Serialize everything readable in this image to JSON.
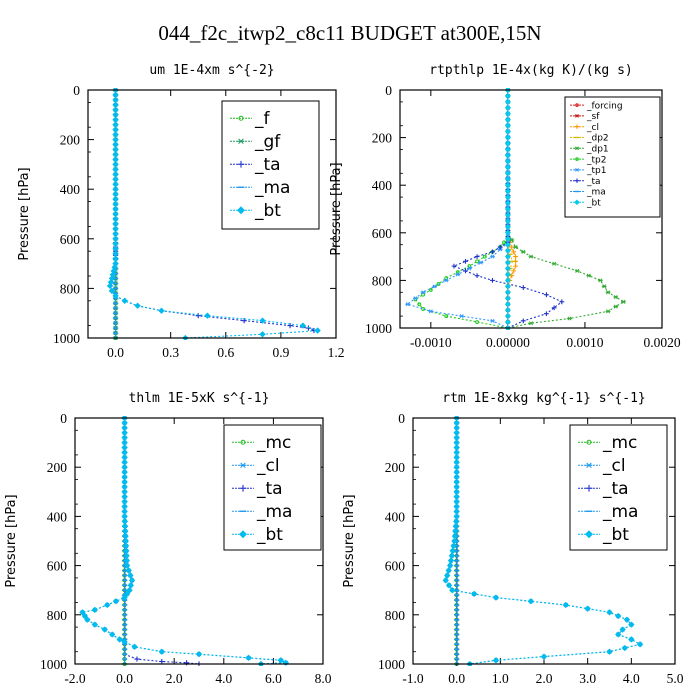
{
  "figure": {
    "title": "044_f2c_itwp2_c8c11  BUDGET at300E,15N"
  },
  "chart_data": [
    {
      "type": "line",
      "title": "um  1E-4xm s^{-2}",
      "ylabel": "Pressure [hPa]",
      "xlabel": "",
      "xlim": [
        -0.15,
        1.2
      ],
      "ylim": [
        1000,
        0
      ],
      "xticks": [
        0.0,
        0.3,
        0.6,
        0.9,
        1.2
      ],
      "xtick_labels": [
        "0.0",
        "0.3",
        "0.6",
        "0.9",
        "1.2"
      ],
      "yticks": [
        0,
        200,
        400,
        600,
        800,
        1000
      ],
      "ytick_labels": [
        "0",
        "200",
        "400",
        "600",
        "800",
        "1000"
      ],
      "legend_position": "top-right",
      "legend": [
        "_f",
        "_gf",
        "_ta",
        "_ma",
        "_bt"
      ],
      "series": [
        {
          "name": "_f",
          "color": "#22bb22",
          "marker": "circle",
          "x": [
            0,
            0
          ],
          "y": [
            0,
            1000
          ]
        },
        {
          "name": "_gf",
          "color": "#229966",
          "marker": "star",
          "x": [
            0,
            0
          ],
          "y": [
            0,
            1000
          ]
        },
        {
          "name": "_ta",
          "color": "#2233cc",
          "marker": "plus",
          "x": [
            0.0,
            0.0,
            0.0,
            0.0,
            0.0,
            0.0,
            0.0,
            0.0,
            0.0,
            -0.01,
            -0.02,
            -0.03,
            -0.02,
            0.0,
            0.05,
            0.12,
            0.25,
            0.45,
            0.7,
            0.95,
            1.05,
            1.08
          ],
          "y": [
            0,
            100,
            200,
            300,
            400,
            500,
            600,
            650,
            700,
            730,
            760,
            790,
            810,
            830,
            850,
            870,
            890,
            910,
            930,
            950,
            960,
            970
          ]
        },
        {
          "name": "_ma",
          "color": "#2299ee",
          "marker": "dash",
          "x": [
            0,
            0
          ],
          "y": [
            0,
            1000
          ]
        },
        {
          "name": "_bt",
          "color": "#00bbee",
          "marker": "diamond",
          "x": [
            0.0,
            0.0,
            0.0,
            0.0,
            0.0,
            0.0,
            0.0,
            0.0,
            -0.01,
            -0.02,
            -0.03,
            -0.02,
            0.0,
            0.05,
            0.12,
            0.25,
            0.5,
            0.8,
            1.02,
            1.1,
            0.8,
            0.38
          ],
          "y": [
            0,
            100,
            200,
            300,
            400,
            500,
            600,
            700,
            730,
            760,
            790,
            810,
            830,
            850,
            870,
            890,
            910,
            930,
            950,
            970,
            985,
            1000
          ]
        }
      ]
    },
    {
      "type": "line",
      "title": "rtpthlp  1E-4x(kg K)/(kg s)",
      "ylabel": "Pressure [hPa]",
      "xlabel": "",
      "xlim": [
        -0.0014,
        0.002
      ],
      "ylim": [
        1000,
        0
      ],
      "xticks": [
        -0.001,
        0.0,
        0.001,
        0.002
      ],
      "xtick_labels": [
        "-0.0010",
        "0.00000",
        "0.0010",
        "0.0020"
      ],
      "yticks": [
        0,
        200,
        400,
        600,
        800,
        1000
      ],
      "ytick_labels": [
        "0",
        "200",
        "400",
        "600",
        "800",
        "1000"
      ],
      "legend_position": "top-right",
      "legend": [
        "_forcing",
        "_sf",
        "_cl",
        "_dp2",
        "_dp1",
        "_tp2",
        "_tp1",
        "_ta",
        "_ma",
        "_bt"
      ],
      "series": [
        {
          "name": "_forcing",
          "color": "#dd2222",
          "marker": "circle",
          "x": [
            0,
            0
          ],
          "y": [
            0,
            1000
          ]
        },
        {
          "name": "_sf",
          "color": "#cc1111",
          "marker": "star",
          "x": [
            0,
            0
          ],
          "y": [
            0,
            1000
          ]
        },
        {
          "name": "_cl",
          "color": "#ff9900",
          "marker": "plus",
          "x": [
            0,
            0,
            5e-05,
            0.0001,
            0.0001,
            5e-05,
            0,
            0,
            0
          ],
          "y": [
            0,
            620,
            660,
            700,
            740,
            780,
            820,
            900,
            1000
          ]
        },
        {
          "name": "_dp2",
          "color": "#ddbb00",
          "marker": "dash",
          "x": [
            0,
            0,
            3e-05,
            6e-05,
            3e-05,
            0,
            0
          ],
          "y": [
            0,
            650,
            690,
            720,
            750,
            800,
            1000
          ]
        },
        {
          "name": "_dp1",
          "color": "#33aa33",
          "marker": "star",
          "x": [
            0,
            0,
            0.0001,
            0.0003,
            0.0006,
            0.0009,
            0.0012,
            0.0013,
            0.0015,
            0.0013,
            0.0008,
            0.0003,
            0
          ],
          "y": [
            0,
            600,
            660,
            700,
            730,
            760,
            800,
            850,
            890,
            930,
            960,
            980,
            1000
          ]
        },
        {
          "name": "_tp2",
          "color": "#22cc22",
          "marker": "circle",
          "x": [
            0,
            0,
            -0.0001,
            -0.0003,
            -0.0005,
            -0.0008,
            -0.001,
            -0.0012,
            -0.0011,
            -0.0008,
            -0.0004,
            0
          ],
          "y": [
            0,
            620,
            660,
            700,
            740,
            790,
            840,
            880,
            920,
            950,
            975,
            1000
          ]
        },
        {
          "name": "_tp1",
          "color": "#3399ff",
          "marker": "star",
          "x": [
            0,
            0,
            -0.0002,
            -0.0005,
            -0.0008,
            -0.0011,
            -0.0013,
            -0.001,
            -0.0006,
            -0.0002,
            0
          ],
          "y": [
            0,
            640,
            700,
            750,
            800,
            850,
            900,
            930,
            950,
            970,
            1000
          ]
        },
        {
          "name": "_ta",
          "color": "#2233cc",
          "marker": "plus",
          "x": [
            0,
            0,
            -0.0002,
            -0.0004,
            -0.0007,
            -0.0004,
            -0.0002,
            0.0002,
            0.0005,
            0.0007,
            0.0005,
            0.0002,
            0
          ],
          "y": [
            0,
            640,
            680,
            700,
            740,
            780,
            800,
            830,
            860,
            890,
            940,
            970,
            1000
          ]
        },
        {
          "name": "_ma",
          "color": "#2299ee",
          "marker": "dash",
          "x": [
            0,
            0
          ],
          "y": [
            0,
            1000
          ]
        },
        {
          "name": "_bt",
          "color": "#00ccee",
          "marker": "diamond",
          "x": [
            0,
            0
          ],
          "y": [
            0,
            1000
          ]
        }
      ]
    },
    {
      "type": "line",
      "title": "thlm  1E-5xK s^{-1}",
      "ylabel": "Pressure [hPa]",
      "xlabel": "",
      "xlim": [
        -2.0,
        8.0
      ],
      "ylim": [
        1000,
        0
      ],
      "xticks": [
        -2.0,
        0.0,
        2.0,
        4.0,
        6.0,
        8.0
      ],
      "xtick_labels": [
        "-2.0",
        "0.0",
        "2.0",
        "4.0",
        "6.0",
        "8.0"
      ],
      "yticks": [
        0,
        200,
        400,
        600,
        800,
        1000
      ],
      "ytick_labels": [
        "0",
        "200",
        "400",
        "600",
        "800",
        "1000"
      ],
      "legend_position": "top-right",
      "legend": [
        "_mc",
        "_cl",
        "_ta",
        "_ma",
        "_bt"
      ],
      "series": [
        {
          "name": "_mc",
          "color": "#22bb22",
          "marker": "circle",
          "x": [
            0,
            0
          ],
          "y": [
            0,
            1000
          ]
        },
        {
          "name": "_cl",
          "color": "#2299ee",
          "marker": "star",
          "x": [
            0.0,
            0.0,
            0.0,
            0.0,
            0.0,
            0.05,
            0.1,
            0.3,
            0.2,
            0.0,
            -0.7,
            -1.2,
            -1.7,
            -1.5,
            -1.2,
            -0.8,
            -0.5,
            -0.2,
            0.0,
            0.4,
            1.5,
            3.0,
            5.0,
            6.3,
            6.5,
            5.5
          ],
          "y": [
            0,
            100,
            200,
            300,
            400,
            500,
            600,
            660,
            700,
            730,
            760,
            780,
            790,
            820,
            840,
            860,
            880,
            900,
            910,
            930,
            950,
            960,
            975,
            985,
            995,
            1000
          ]
        },
        {
          "name": "_ta",
          "color": "#2233cc",
          "marker": "plus",
          "x": [
            0,
            0,
            0.5,
            1.5,
            2.5,
            3.0
          ],
          "y": [
            0,
            960,
            980,
            990,
            995,
            1000
          ]
        },
        {
          "name": "_ma",
          "color": "#2299ee",
          "marker": "dash",
          "x": [
            0,
            0
          ],
          "y": [
            0,
            1000
          ]
        },
        {
          "name": "_bt",
          "color": "#00bbee",
          "marker": "diamond",
          "x": [
            0.0,
            0.0,
            0.0,
            0.0,
            0.0,
            0.05,
            0.1,
            0.3,
            0.2,
            0.0,
            -0.7,
            -1.2,
            -1.7,
            -1.5,
            -1.2,
            -0.8,
            -0.5,
            -0.2,
            0.0,
            0.4,
            1.5,
            3.0,
            5.0,
            6.3,
            6.5,
            5.5
          ],
          "y": [
            0,
            100,
            200,
            300,
            400,
            500,
            600,
            660,
            700,
            730,
            760,
            780,
            790,
            820,
            840,
            860,
            880,
            900,
            910,
            930,
            950,
            960,
            975,
            985,
            995,
            1000
          ]
        }
      ]
    },
    {
      "type": "line",
      "title": "rtm  1E-8xkg kg^{-1} s^{-1}",
      "ylabel": "Pressure [hPa]",
      "xlabel": "",
      "xlim": [
        -1.0,
        5.0
      ],
      "ylim": [
        1000,
        0
      ],
      "xticks": [
        -1.0,
        0.0,
        1.0,
        2.0,
        3.0,
        4.0,
        5.0
      ],
      "xtick_labels": [
        "-1.0",
        "0.0",
        "1.0",
        "2.0",
        "3.0",
        "4.0",
        "5.0"
      ],
      "yticks": [
        0,
        200,
        400,
        600,
        800,
        1000
      ],
      "ytick_labels": [
        "0",
        "200",
        "400",
        "600",
        "800",
        "1000"
      ],
      "legend_position": "top-right",
      "legend": [
        "_mc",
        "_cl",
        "_ta",
        "_ma",
        "_bt"
      ],
      "series": [
        {
          "name": "_mc",
          "color": "#22bb22",
          "marker": "circle",
          "x": [
            0,
            0
          ],
          "y": [
            0,
            1000
          ]
        },
        {
          "name": "_cl",
          "color": "#2299ee",
          "marker": "star",
          "x": [
            0.0,
            0.0,
            0.0,
            0.0,
            0.0,
            -0.05,
            -0.15,
            -0.25,
            -0.1,
            0.9,
            2.5,
            3.5,
            3.9,
            4.0,
            3.8,
            3.7,
            4.0,
            4.2,
            3.5,
            2.0,
            0.9,
            0.3
          ],
          "y": [
            0,
            100,
            200,
            300,
            400,
            500,
            600,
            660,
            700,
            730,
            760,
            790,
            820,
            840,
            860,
            880,
            900,
            920,
            950,
            970,
            985,
            1000
          ]
        },
        {
          "name": "_ta",
          "color": "#2233cc",
          "marker": "plus",
          "x": [
            0,
            0
          ],
          "y": [
            0,
            1000
          ]
        },
        {
          "name": "_ma",
          "color": "#2299ee",
          "marker": "dash",
          "x": [
            0,
            0
          ],
          "y": [
            0,
            1000
          ]
        },
        {
          "name": "_bt",
          "color": "#00bbee",
          "marker": "diamond",
          "x": [
            0.0,
            0.0,
            0.0,
            0.0,
            0.0,
            -0.05,
            -0.15,
            -0.25,
            -0.1,
            0.9,
            2.5,
            3.5,
            3.9,
            4.0,
            3.8,
            3.7,
            4.0,
            4.2,
            3.5,
            2.0,
            0.9,
            0.3
          ],
          "y": [
            0,
            100,
            200,
            300,
            400,
            500,
            600,
            660,
            700,
            730,
            760,
            790,
            820,
            840,
            860,
            880,
            900,
            920,
            950,
            970,
            985,
            1000
          ]
        }
      ]
    }
  ]
}
